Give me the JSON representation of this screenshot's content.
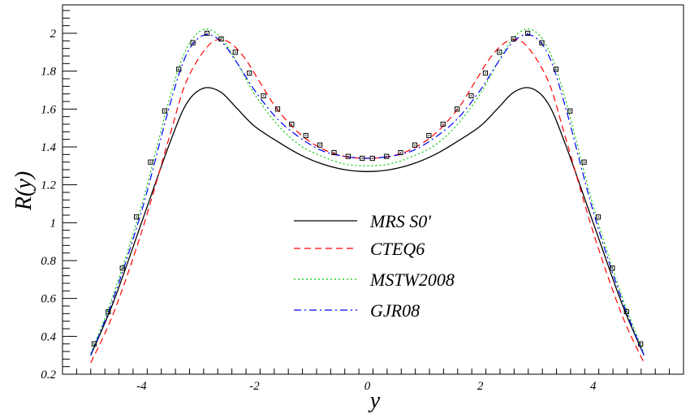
{
  "chart_data": {
    "type": "line",
    "title": "",
    "xlabel": "y",
    "ylabel": "R(y)",
    "xlim": [
      -5.4,
      5.6
    ],
    "ylim": [
      0.2,
      2.15
    ],
    "grid": false,
    "legend_position": "center",
    "xticks": [
      -4,
      -2,
      0,
      2,
      4
    ],
    "xtick_labels": [
      "-4",
      "-2",
      "0",
      "2",
      "4"
    ],
    "yticks": [
      0.2,
      0.4,
      0.6,
      0.8,
      1,
      1.2,
      1.4,
      1.6,
      1.8,
      2
    ],
    "ytick_labels": [
      "0.2",
      "0.4",
      "0.6",
      "0.8",
      "1",
      "1.2",
      "1.4",
      "1.6",
      "1.8",
      "2"
    ],
    "series": [
      {
        "name": "MRS S0'",
        "color": "#000000",
        "dash": "solid",
        "x": [
          -4.9,
          -4.5,
          -4.0,
          -3.5,
          -3.2,
          -2.9,
          -2.6,
          -2.3,
          -2.0,
          -1.6,
          -1.2,
          -0.8,
          -0.4,
          0,
          0.4,
          0.8,
          1.2,
          1.6,
          2.0,
          2.3,
          2.6,
          2.9,
          3.2,
          3.5,
          4.0,
          4.5,
          4.9
        ],
        "y": [
          0.3,
          0.58,
          1.0,
          1.42,
          1.63,
          1.71,
          1.69,
          1.6,
          1.51,
          1.43,
          1.36,
          1.31,
          1.28,
          1.27,
          1.28,
          1.31,
          1.36,
          1.43,
          1.51,
          1.6,
          1.69,
          1.71,
          1.63,
          1.42,
          1.0,
          0.58,
          0.3
        ]
      },
      {
        "name": "CTEQ6",
        "color": "#ff0000",
        "dash": "dashed",
        "x": [
          -4.9,
          -4.5,
          -4.0,
          -3.5,
          -3.2,
          -2.8,
          -2.5,
          -2.2,
          -1.9,
          -1.6,
          -1.2,
          -0.8,
          -0.4,
          0,
          0.4,
          0.8,
          1.2,
          1.6,
          1.9,
          2.2,
          2.5,
          2.8,
          3.2,
          3.5,
          4.0,
          4.5,
          4.9
        ],
        "y": [
          0.26,
          0.52,
          0.95,
          1.46,
          1.75,
          1.94,
          1.96,
          1.88,
          1.74,
          1.6,
          1.47,
          1.39,
          1.35,
          1.34,
          1.35,
          1.39,
          1.47,
          1.6,
          1.74,
          1.88,
          1.96,
          1.94,
          1.75,
          1.46,
          0.95,
          0.52,
          0.26
        ]
      },
      {
        "name": "MSTW2008",
        "color": "#00cc00",
        "dash": "dotted",
        "x": [
          -4.9,
          -4.5,
          -4.0,
          -3.5,
          -3.2,
          -2.9,
          -2.6,
          -2.3,
          -2.0,
          -1.6,
          -1.2,
          -0.8,
          -0.4,
          0,
          0.4,
          0.8,
          1.2,
          1.6,
          2.0,
          2.3,
          2.6,
          2.9,
          3.2,
          3.5,
          4.0,
          4.5,
          4.9
        ],
        "y": [
          0.31,
          0.62,
          1.09,
          1.66,
          1.92,
          2.02,
          1.98,
          1.84,
          1.68,
          1.52,
          1.41,
          1.35,
          1.31,
          1.3,
          1.31,
          1.35,
          1.41,
          1.52,
          1.68,
          1.84,
          1.98,
          2.02,
          1.92,
          1.66,
          1.09,
          0.62,
          0.31
        ]
      },
      {
        "name": "GJR08",
        "color": "#0000ff",
        "dash": "dashdot",
        "x": [
          -4.9,
          -4.5,
          -4.0,
          -3.5,
          -3.2,
          -2.9,
          -2.6,
          -2.3,
          -2.0,
          -1.6,
          -1.2,
          -0.8,
          -0.4,
          0,
          0.4,
          0.8,
          1.2,
          1.6,
          2.0,
          2.3,
          2.6,
          2.9,
          3.2,
          3.5,
          4.0,
          4.5,
          4.9
        ],
        "y": [
          0.3,
          0.6,
          1.06,
          1.62,
          1.89,
          1.99,
          1.96,
          1.84,
          1.7,
          1.55,
          1.45,
          1.38,
          1.35,
          1.34,
          1.35,
          1.38,
          1.45,
          1.55,
          1.7,
          1.84,
          1.96,
          1.99,
          1.89,
          1.62,
          1.06,
          0.6,
          0.3
        ]
      }
    ],
    "markers": {
      "style": "open-square-dot",
      "color": "#000000",
      "x": [
        -4.84,
        -4.59,
        -4.34,
        -4.09,
        -3.84,
        -3.59,
        -3.34,
        -3.09,
        -2.84,
        -2.59,
        -2.34,
        -2.09,
        -1.84,
        -1.59,
        -1.34,
        -1.09,
        -0.84,
        -0.59,
        -0.34,
        -0.09,
        0.09,
        0.34,
        0.59,
        0.84,
        1.09,
        1.34,
        1.59,
        1.84,
        2.09,
        2.34,
        2.59,
        2.84,
        3.09,
        3.34,
        3.59,
        3.84,
        4.09,
        4.34,
        4.59,
        4.84
      ],
      "y": [
        0.36,
        0.53,
        0.76,
        1.03,
        1.32,
        1.59,
        1.81,
        1.95,
        2.0,
        1.97,
        1.9,
        1.79,
        1.67,
        1.6,
        1.52,
        1.46,
        1.41,
        1.37,
        1.35,
        1.34,
        1.34,
        1.35,
        1.37,
        1.41,
        1.46,
        1.52,
        1.6,
        1.67,
        1.79,
        1.9,
        1.97,
        2.0,
        1.95,
        1.81,
        1.59,
        1.32,
        1.03,
        0.76,
        0.53,
        0.36
      ]
    }
  }
}
